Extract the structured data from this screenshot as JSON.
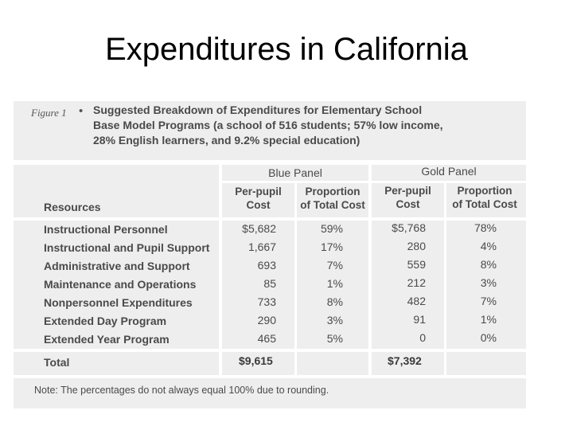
{
  "slide": {
    "title": "Expenditures in California"
  },
  "figure": {
    "label": "Figure 1",
    "bullet": "•",
    "caption_lines": [
      "Suggested Breakdown of Expenditures for Elementary School",
      "Base Model Programs (a school of 516 students; 57% low income,",
      "28% English learners, and 9.2% special education)"
    ]
  },
  "table": {
    "panels": [
      "Blue Panel",
      "Gold Panel"
    ],
    "resources_header": "Resources",
    "col_headers": [
      [
        "Per-pupil",
        "Cost"
      ],
      [
        "Proportion",
        "of Total Cost"
      ],
      [
        "Per-pupil",
        "Cost"
      ],
      [
        "Proportion",
        "of Total Cost"
      ]
    ],
    "rows": [
      {
        "resource": "Instructional Personnel",
        "blue_cost": "$5,682",
        "blue_prop": "59%",
        "gold_cost": "$5,768",
        "gold_prop": "78%"
      },
      {
        "resource": "Instructional and Pupil Support",
        "blue_cost": "1,667",
        "blue_prop": "17%",
        "gold_cost": "280",
        "gold_prop": "4%"
      },
      {
        "resource": "Administrative and Support",
        "blue_cost": "693",
        "blue_prop": "7%",
        "gold_cost": "559",
        "gold_prop": "8%"
      },
      {
        "resource": "Maintenance and Operations",
        "blue_cost": "85",
        "blue_prop": "1%",
        "gold_cost": "212",
        "gold_prop": "3%"
      },
      {
        "resource": "Nonpersonnel Expenditures",
        "blue_cost": "733",
        "blue_prop": "8%",
        "gold_cost": "482",
        "gold_prop": "7%"
      },
      {
        "resource": "Extended Day Program",
        "blue_cost": "290",
        "blue_prop": "3%",
        "gold_cost": "91",
        "gold_prop": "1%"
      },
      {
        "resource": "Extended Year Program",
        "blue_cost": "465",
        "blue_prop": "5%",
        "gold_cost": "0",
        "gold_prop": "0%"
      }
    ],
    "total": {
      "label": "Total",
      "blue_cost": "$9,615",
      "gold_cost": "$7,392"
    }
  },
  "note": "Note: The percentages do not always equal 100% due to rounding."
}
